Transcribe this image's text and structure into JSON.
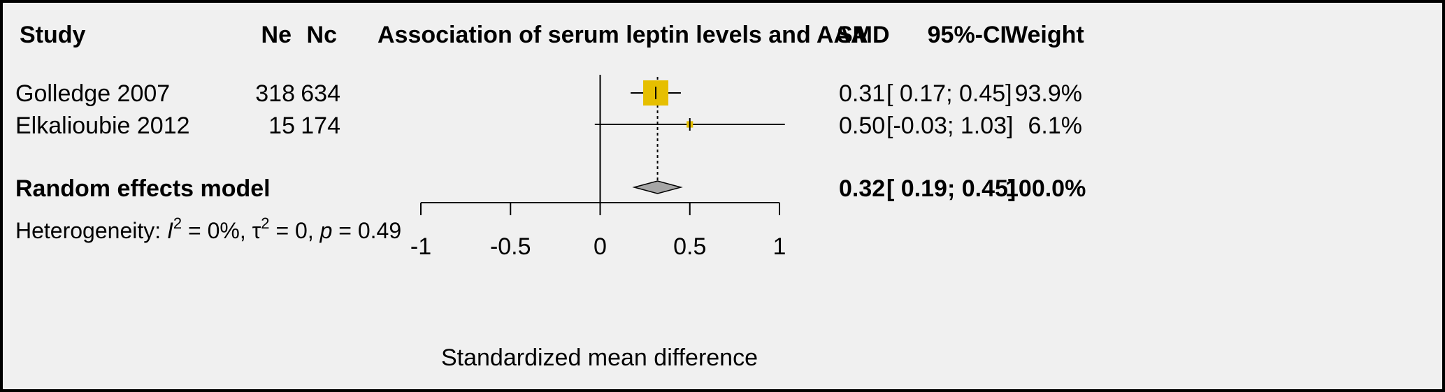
{
  "header": {
    "study": "Study",
    "ne": "Ne",
    "nc": "Nc",
    "title": "Association of serum leptin levels and AAA",
    "smd": "SMD",
    "ci": "95%-CI",
    "weight": "Weight"
  },
  "rows": [
    {
      "study": "Golledge 2007",
      "ne": "318",
      "nc": "634",
      "smd": "0.31",
      "ci": "[ 0.17; 0.45]",
      "weight": "93.9%"
    },
    {
      "study": "Elkalioubie 2012",
      "ne": "15",
      "nc": "174",
      "smd": "0.50",
      "ci": "[-0.03; 1.03]",
      "weight": "6.1%"
    }
  ],
  "pooled": {
    "label": "Random effects model",
    "smd": "0.32",
    "ci": "[ 0.19; 0.45]",
    "weight": "100.0%"
  },
  "heterogeneity": {
    "prefix": "Heterogeneity: ",
    "i_symbol": "I",
    "i_sup": "2",
    "i_value": " = 0%, ",
    "tau_symbol": "τ",
    "tau_sup": "2",
    "tau_value": " = 0, ",
    "p_symbol": "p",
    "p_value": " = 0.49"
  },
  "colors": {
    "study_box": "#e6bf00",
    "diamond": "#a6a6a6",
    "background": "#f0f0f0"
  },
  "chart_data": {
    "type": "forest",
    "title": "Association of serum leptin levels and AAA",
    "xlabel": "Standardized mean difference",
    "xlim": [
      -1,
      1.05
    ],
    "ticks": [
      -1,
      -0.5,
      0,
      0.5,
      1
    ],
    "tick_labels": [
      "-1",
      "-0.5",
      "0",
      "0.5",
      "1"
    ],
    "reference_line": 0,
    "studies": [
      {
        "name": "Golledge 2007",
        "smd": 0.31,
        "lower": 0.17,
        "upper": 0.45,
        "weight": 93.9
      },
      {
        "name": "Elkalioubie 2012",
        "smd": 0.5,
        "lower": -0.03,
        "upper": 1.03,
        "weight": 6.1
      }
    ],
    "pooled": {
      "name": "Random effects model",
      "smd": 0.32,
      "lower": 0.19,
      "upper": 0.45,
      "weight": 100.0
    }
  }
}
